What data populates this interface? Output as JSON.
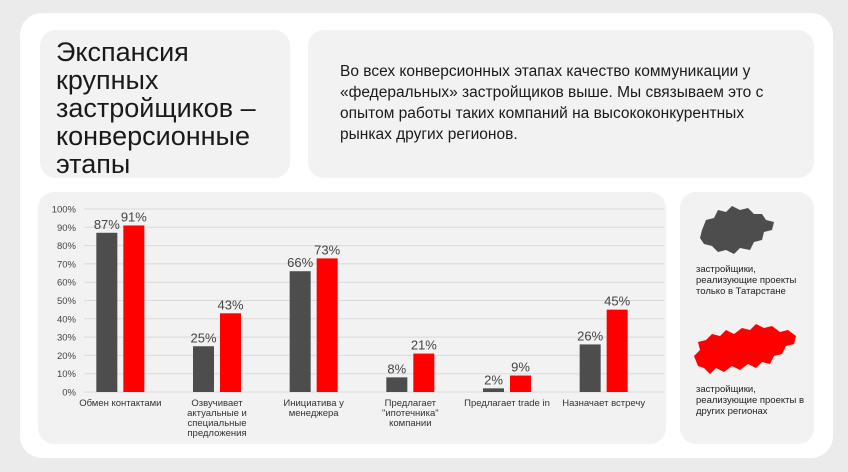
{
  "header": {
    "title": "Экспансия крупных застройщиков – конверсионные этапы",
    "description": "Во всех конверсионных этапах качество коммуникации у «федеральных» застройщиков выше. Мы связываем это с опытом работы таких компаний на высококонкурентных рынках других регионов."
  },
  "legend": {
    "items": [
      {
        "label": "застройщики, реализующие проекты только в Татарстане",
        "color": "#4d4d4d",
        "icon": "tatarstan-map-icon"
      },
      {
        "label": "застройщики, реализующие проекты в других регионах",
        "color": "#ff0000",
        "icon": "russia-map-icon"
      }
    ]
  },
  "chart_data": {
    "type": "bar",
    "categories": [
      "Обмен контактами",
      "Озвучивает актуальные и специальные предложения",
      "Инициатива у менеджера",
      "Предлагает \"ипотечника\" компании",
      "Предлагает trade in",
      "Назначает встречу"
    ],
    "series": [
      {
        "values": [
          87,
          25,
          66,
          8,
          2,
          26
        ],
        "color": "#4d4d4d"
      },
      {
        "values": [
          91,
          43,
          73,
          21,
          9,
          45
        ],
        "color": "#ff0000"
      }
    ],
    "ylim": [
      0,
      100
    ],
    "yticks": [
      "0%",
      "10%",
      "20%",
      "30%",
      "40%",
      "50%",
      "60%",
      "70%",
      "80%",
      "90%",
      "100%"
    ],
    "value_suffix": "%",
    "grid": true
  }
}
